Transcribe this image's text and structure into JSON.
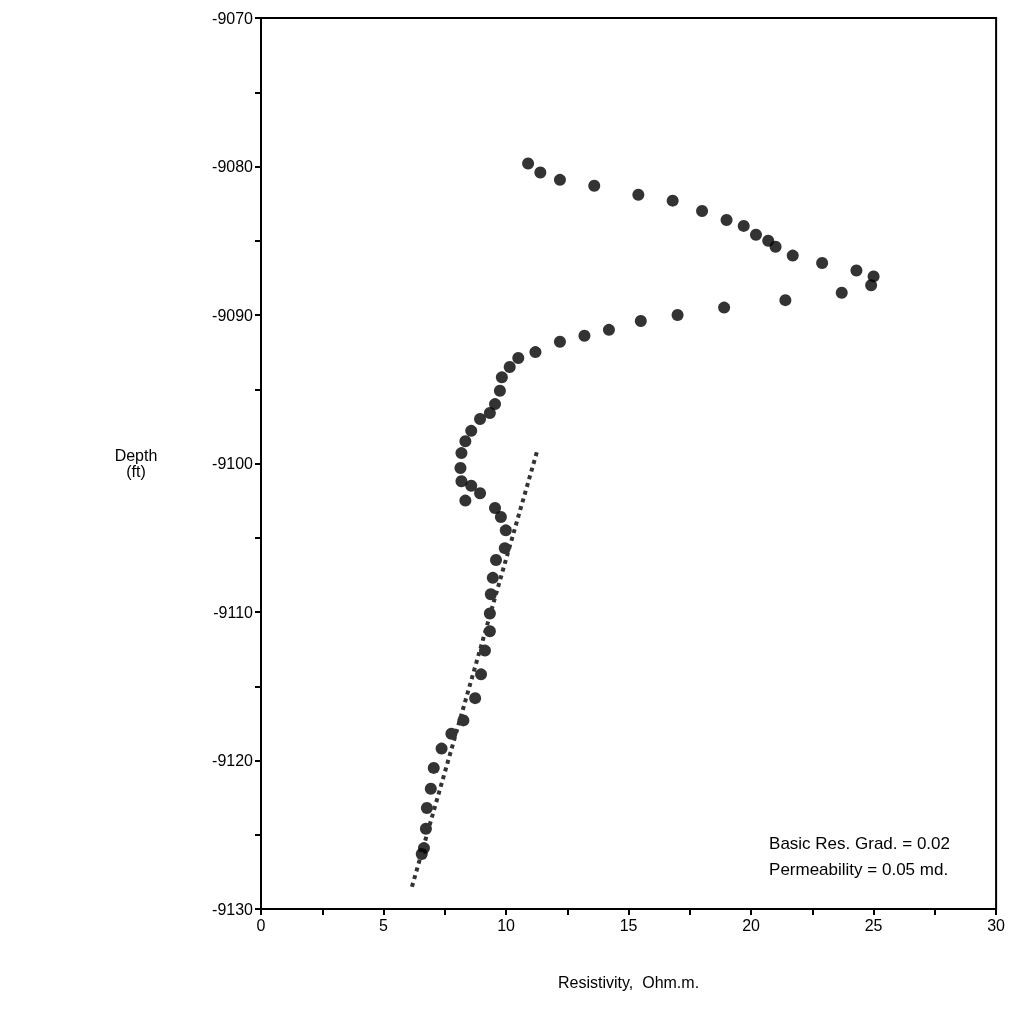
{
  "chart_data": {
    "type": "scatter",
    "xlabel": "Resistivity,  Ohm.m.",
    "ylabel": "Depth\n(ft)",
    "annotations": [
      "Basic Res. Grad. = 0.02",
      "Permeability = 0.05 md."
    ],
    "xlim": [
      0,
      30
    ],
    "ylim": [
      -9130,
      -9070
    ],
    "xticks": [
      0,
      {
        "value": 2.5,
        "label": null
      },
      5,
      {
        "value": 7.5,
        "label": null
      },
      10,
      {
        "value": 12.5,
        "label": null
      },
      15,
      {
        "value": 17.5,
        "label": null
      },
      20,
      {
        "value": 22.5,
        "label": null
      },
      25,
      {
        "value": 27.5,
        "label": null
      },
      30
    ],
    "yticks": [
      -9130,
      {
        "value": -9125,
        "label": null
      },
      -9120,
      {
        "value": -9115,
        "label": null
      },
      -9110,
      {
        "value": -9105,
        "label": null
      },
      -9100,
      {
        "value": -9095,
        "label": null
      },
      -9090,
      {
        "value": -9085,
        "label": null
      },
      -9080,
      {
        "value": -9075,
        "label": null
      },
      -9070
    ],
    "grid": false,
    "series": [
      {
        "type": "scatter",
        "marker": "circle",
        "color": "#000000",
        "x": [
          10.9,
          11.4,
          12.2,
          13.6,
          15.4,
          16.8,
          18.0,
          19.0,
          19.7,
          20.2,
          20.7,
          21.0,
          21.7,
          22.9,
          24.3,
          25.0,
          24.9,
          23.7,
          21.4,
          18.9,
          17.0,
          15.5,
          14.2,
          13.2,
          12.2,
          11.2,
          10.5,
          10.15,
          9.83,
          9.75,
          9.55,
          9.34,
          8.94,
          8.58,
          8.34,
          8.18,
          8.14,
          8.18,
          8.58,
          8.94,
          8.34,
          9.55,
          9.79,
          9.99,
          9.95,
          9.59,
          9.46,
          9.38,
          9.34,
          9.34,
          9.14,
          8.98,
          8.74,
          8.26,
          7.77,
          7.37,
          7.05,
          6.93,
          6.77,
          6.73,
          6.65,
          6.56
        ],
        "values": [
          -9079.8,
          -9080.4,
          -9080.9,
          -9081.3,
          -9081.9,
          -9082.3,
          -9083.0,
          -9083.6,
          -9084.0,
          -9084.6,
          -9085.0,
          -9085.4,
          -9086.0,
          -9086.5,
          -9087.0,
          -9087.4,
          -9088.0,
          -9088.5,
          -9089.0,
          -9089.5,
          -9090.0,
          -9090.4,
          -9091.0,
          -9091.4,
          -9091.8,
          -9092.5,
          -9092.9,
          -9093.5,
          -9094.2,
          -9095.1,
          -9096.0,
          -9096.6,
          -9097.0,
          -9097.8,
          -9098.5,
          -9099.3,
          -9100.3,
          -9101.2,
          -9101.5,
          -9102.0,
          -9102.5,
          -9103.0,
          -9103.6,
          -9104.5,
          -9105.7,
          -9106.5,
          -9107.7,
          -9108.8,
          -9110.1,
          -9111.3,
          -9112.6,
          -9114.2,
          -9115.8,
          -9117.3,
          -9118.2,
          -9119.2,
          -9120.5,
          -9121.9,
          -9123.2,
          -9124.6,
          -9125.9,
          -9126.3
        ]
      },
      {
        "type": "line",
        "marker": "none",
        "line_style": "dotted",
        "color": "#333333",
        "x": [
          6.16,
          11.28
        ],
        "values": [
          -9128.5,
          -9099.1
        ]
      }
    ]
  }
}
